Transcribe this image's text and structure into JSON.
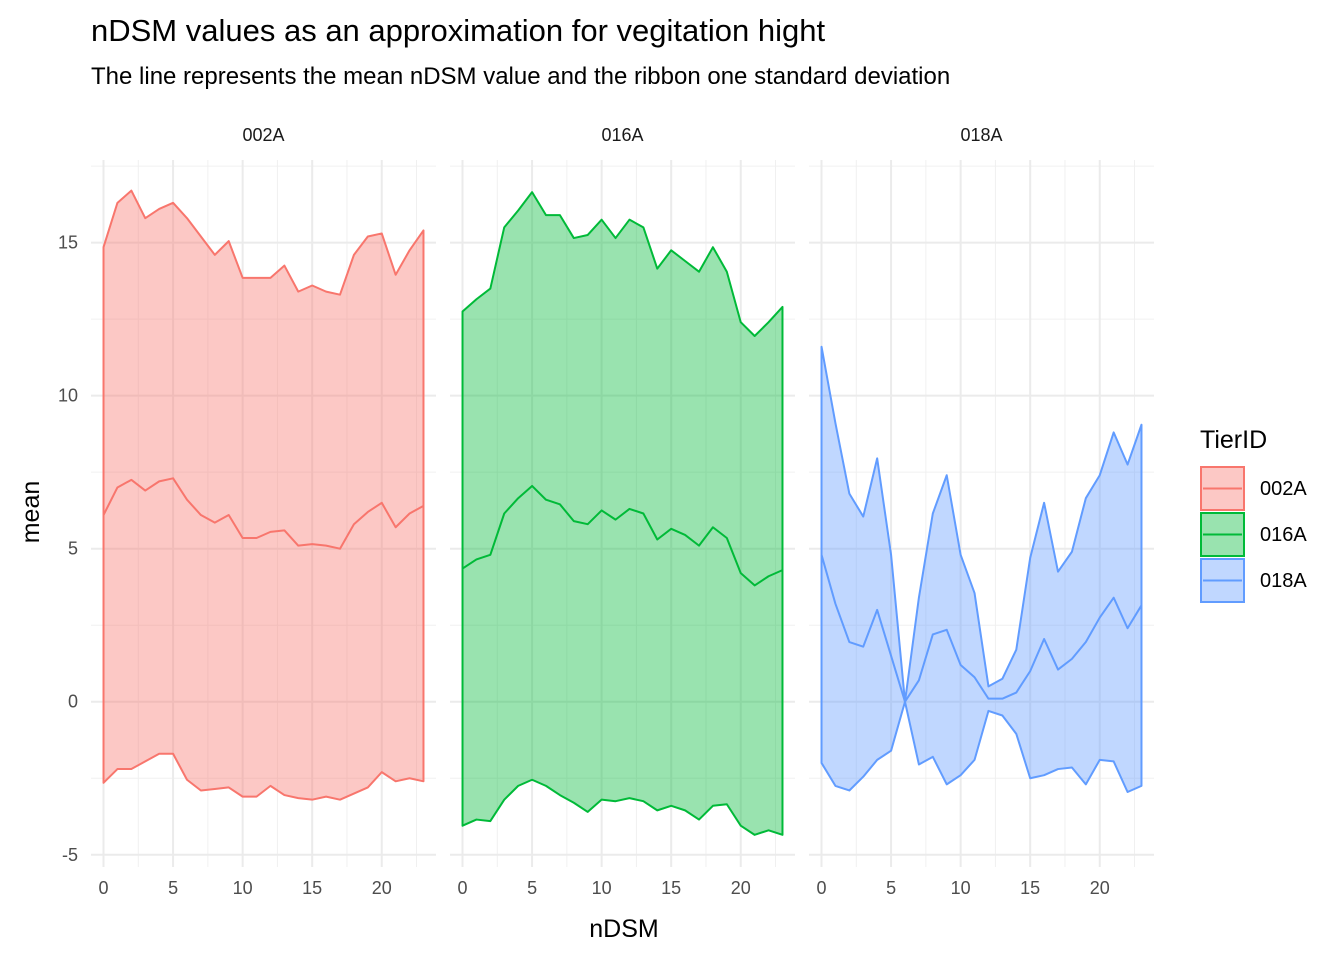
{
  "chart_data": {
    "type": "area",
    "title": "nDSM values as an approximation for vegitation hight",
    "subtitle": "The line represents the mean nDSM value and the ribbon one standard deviation",
    "xlabel": "nDSM",
    "ylabel": "mean",
    "xlim": [
      -0.9,
      23.9
    ],
    "ylim": [
      -5.4,
      17.7
    ],
    "x_ticks": [
      0,
      5,
      10,
      15,
      20
    ],
    "y_ticks": [
      -5,
      0,
      5,
      10,
      15
    ],
    "x_tick_labels": [
      "0",
      "5",
      "10",
      "15",
      "20"
    ],
    "y_tick_labels": [
      "-5",
      "0",
      "5",
      "10",
      "15"
    ],
    "grid": true,
    "legend": {
      "title": "TierID",
      "position": "right"
    },
    "x": [
      0,
      1,
      2,
      3,
      4,
      5,
      6,
      7,
      8,
      9,
      10,
      11,
      12,
      13,
      14,
      15,
      16,
      17,
      18,
      19,
      20,
      21,
      22,
      23
    ],
    "series": [
      {
        "name": "002A",
        "panel": "002A",
        "color": "#F8766D",
        "mean": [
          6.1,
          7.0,
          7.25,
          6.9,
          7.2,
          7.3,
          6.6,
          6.1,
          5.85,
          6.1,
          5.35,
          5.35,
          5.55,
          5.6,
          5.1,
          5.15,
          5.1,
          5.0,
          5.8,
          6.2,
          6.5,
          5.7,
          6.15,
          6.4
        ],
        "upper": [
          14.85,
          16.3,
          16.7,
          15.8,
          16.1,
          16.3,
          15.8,
          15.2,
          14.6,
          15.05,
          13.85,
          13.85,
          13.85,
          14.25,
          13.4,
          13.6,
          13.4,
          13.3,
          14.6,
          15.2,
          15.3,
          13.95,
          14.75,
          15.4
        ],
        "lower": [
          -2.65,
          -2.2,
          -2.2,
          -1.95,
          -1.7,
          -1.7,
          -2.55,
          -2.9,
          -2.85,
          -2.8,
          -3.1,
          -3.1,
          -2.75,
          -3.05,
          -3.15,
          -3.2,
          -3.1,
          -3.2,
          -3.0,
          -2.8,
          -2.3,
          -2.6,
          -2.5,
          -2.6
        ]
      },
      {
        "name": "016A",
        "panel": "016A",
        "color": "#00BA38",
        "mean": [
          4.35,
          4.65,
          4.8,
          6.15,
          6.65,
          7.05,
          6.6,
          6.45,
          5.9,
          5.8,
          6.25,
          5.95,
          6.3,
          6.15,
          5.3,
          5.65,
          5.45,
          5.1,
          5.7,
          5.35,
          4.2,
          3.8,
          4.1,
          4.3
        ],
        "upper": [
          12.75,
          13.15,
          13.5,
          15.5,
          16.05,
          16.65,
          15.9,
          15.9,
          15.15,
          15.25,
          15.75,
          15.15,
          15.75,
          15.5,
          14.15,
          14.75,
          14.4,
          14.05,
          14.85,
          14.05,
          12.4,
          11.95,
          12.4,
          12.9
        ],
        "lower": [
          -4.05,
          -3.85,
          -3.9,
          -3.2,
          -2.75,
          -2.55,
          -2.75,
          -3.05,
          -3.3,
          -3.6,
          -3.2,
          -3.25,
          -3.15,
          -3.25,
          -3.55,
          -3.4,
          -3.55,
          -3.85,
          -3.4,
          -3.35,
          -4.05,
          -4.35,
          -4.2,
          -4.35
        ]
      },
      {
        "name": "018A",
        "panel": "018A",
        "color": "#619CFF",
        "mean": [
          4.8,
          3.2,
          1.95,
          1.8,
          3.0,
          1.5,
          0.0,
          0.7,
          2.2,
          2.35,
          1.2,
          0.8,
          0.1,
          0.1,
          0.3,
          1.0,
          2.05,
          1.05,
          1.4,
          1.95,
          2.75,
          3.4,
          2.4,
          3.15
        ],
        "upper": [
          11.6,
          9.1,
          6.8,
          6.05,
          7.95,
          4.8,
          0.0,
          3.4,
          6.15,
          7.4,
          4.8,
          3.55,
          0.5,
          0.75,
          1.7,
          4.7,
          6.5,
          4.25,
          4.9,
          6.65,
          7.4,
          8.8,
          7.75,
          9.05
        ],
        "lower": [
          -2.0,
          -2.75,
          -2.9,
          -2.45,
          -1.9,
          -1.6,
          0.0,
          -2.05,
          -1.8,
          -2.7,
          -2.4,
          -1.9,
          -0.3,
          -0.45,
          -1.05,
          -2.5,
          -2.4,
          -2.2,
          -2.15,
          -2.7,
          -1.9,
          -1.95,
          -2.95,
          -2.75
        ]
      }
    ]
  }
}
